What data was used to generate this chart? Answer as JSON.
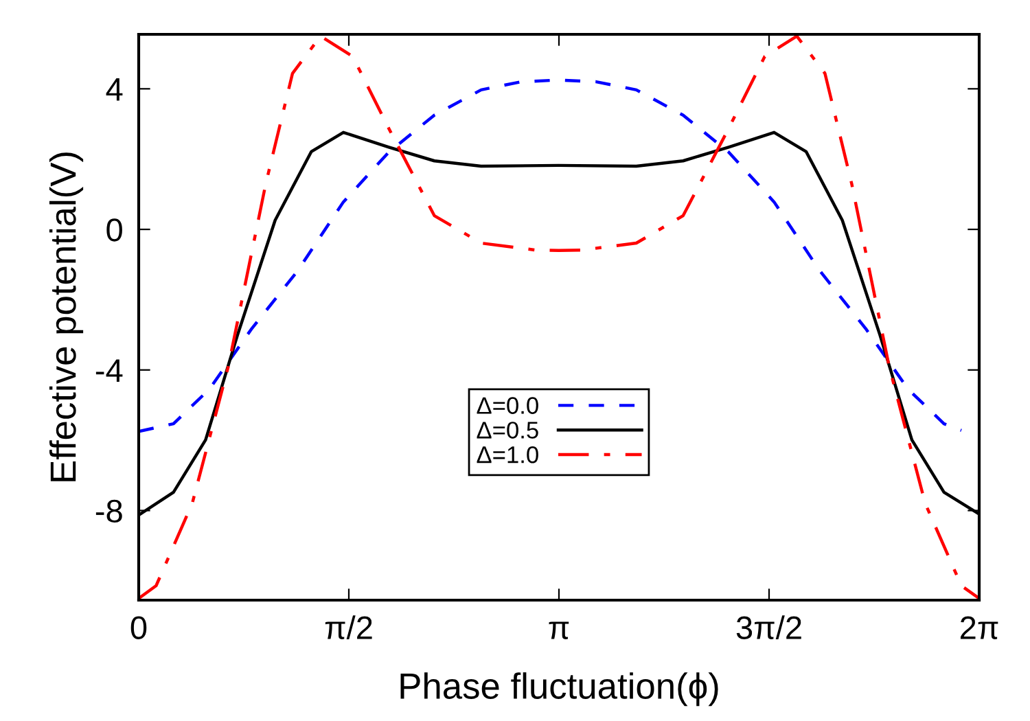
{
  "chart_data": {
    "type": "line",
    "xlabel": "Phase fluctuation(ϕ)",
    "ylabel": "Effective potential(V)",
    "xlim": [
      0,
      6.2832
    ],
    "ylim": [
      -10.55,
      5.55
    ],
    "xticks": [
      0,
      {
        "value": 1.5708,
        "label": "π/2"
      },
      {
        "value": 3.1416,
        "label": "π"
      },
      {
        "value": 4.7124,
        "label": "3π/2"
      },
      {
        "value": 6.2832,
        "label": "2π"
      }
    ],
    "yticks": [
      {
        "value": -8,
        "label": "-8"
      },
      {
        "value": -4,
        "label": "-4"
      },
      0,
      4
    ],
    "grid": false,
    "legend": "bottom",
    "marker": "none",
    "series": [
      {
        "name": "Δ=0.0",
        "color": "#0000ff",
        "line_style": "dashed",
        "x": [
          0,
          0.26,
          0.53,
          0.84,
          1.19,
          1.53,
          1.87,
          2.21,
          2.56,
          2.86,
          3.14,
          3.42,
          3.72,
          4.07,
          4.41,
          4.75,
          5.09,
          5.44,
          5.75,
          6.02,
          6.15
        ],
        "values": [
          -5.75,
          -5.53,
          -4.54,
          -2.85,
          -1.17,
          0.78,
          2.2,
          3.25,
          3.97,
          4.2,
          4.25,
          4.2,
          3.97,
          3.25,
          2.2,
          0.78,
          -1.17,
          -2.85,
          -4.54,
          -5.53,
          -5.72
        ]
      },
      {
        "name": "Δ=0.5",
        "color": "#000000",
        "line_style": "solid",
        "x": [
          0,
          0.26,
          0.5,
          0.74,
          1.02,
          1.29,
          1.53,
          1.87,
          2.21,
          2.56,
          3.14,
          3.72,
          4.07,
          4.41,
          4.75,
          4.99,
          5.26,
          5.54,
          5.78,
          6.02,
          6.283
        ],
        "values": [
          -8.13,
          -7.48,
          -5.99,
          -2.99,
          0.26,
          2.21,
          2.76,
          2.34,
          1.95,
          1.8,
          1.82,
          1.8,
          1.95,
          2.34,
          2.76,
          2.21,
          0.26,
          -2.99,
          -5.99,
          -7.48,
          -8.1
        ]
      },
      {
        "name": "Δ=1.0",
        "color": "#ff0000",
        "line_style": "dashdot",
        "x": [
          0,
          0.13,
          0.4,
          0.67,
          0.95,
          1.15,
          1.36,
          1.6,
          1.87,
          2.21,
          2.56,
          2.97,
          3.14,
          3.31,
          3.72,
          4.07,
          4.41,
          4.68,
          4.92,
          5.13,
          5.33,
          5.61,
          5.88,
          6.15,
          6.283
        ],
        "values": [
          -10.5,
          -10.14,
          -7.8,
          -3.9,
          1.3,
          4.44,
          5.5,
          4.92,
          2.87,
          0.39,
          -0.39,
          -0.59,
          -0.6,
          -0.59,
          -0.39,
          0.39,
          2.87,
          4.92,
          5.5,
          4.44,
          1.3,
          -3.9,
          -7.8,
          -10.14,
          -10.5
        ]
      }
    ]
  }
}
